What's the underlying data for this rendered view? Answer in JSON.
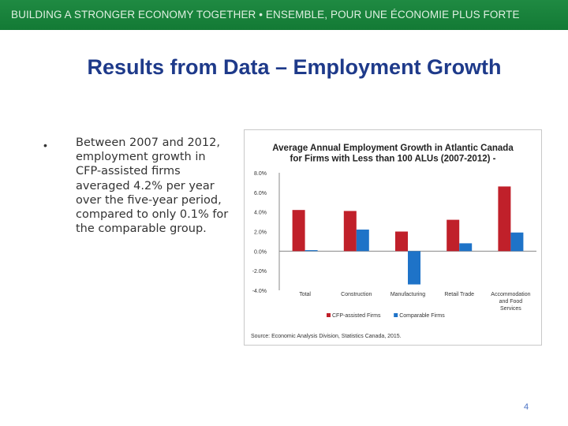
{
  "header": {
    "banner": "BUILDING A STRONGER ECONOMY TOGETHER • ENSEMBLE, POUR UNE ÉCONOMIE PLUS FORTE",
    "banner_color": "#1a8540"
  },
  "slide": {
    "title": "Results from Data – Employment Growth",
    "bullet": "Between 2007 and 2012, employment growth in CFP-assisted firms averaged 4.2% per year over the five-year period, compared to only 0.1% for the comparable group.",
    "page_number": "4"
  },
  "chart_data": {
    "type": "bar",
    "title": "Average Annual Employment Growth in Atlantic Canada for Firms with Less than 100 ALUs (2007-2012)",
    "categories": [
      "Total",
      "Construction",
      "Manufacturing",
      "Retail Trade",
      "Accommodation and Food Services"
    ],
    "series": [
      {
        "name": "CFP-assisted Firms",
        "values": [
          4.2,
          4.1,
          2.0,
          3.2,
          6.6
        ],
        "color": "#c0202a"
      },
      {
        "name": "Comparable Firms",
        "values": [
          0.1,
          2.2,
          -3.4,
          0.8,
          1.9
        ],
        "color": "#1e73c8"
      }
    ],
    "ylim": [
      -4.0,
      8.0
    ],
    "yticks": [
      "8.0%",
      "6.0%",
      "4.0%",
      "2.0%",
      "0.0%",
      "-2.0%",
      "-4.0%"
    ],
    "grid": false,
    "legend": "bottom",
    "source": "Source: Economic Analysis Division, Statistics Canada, 2015."
  }
}
